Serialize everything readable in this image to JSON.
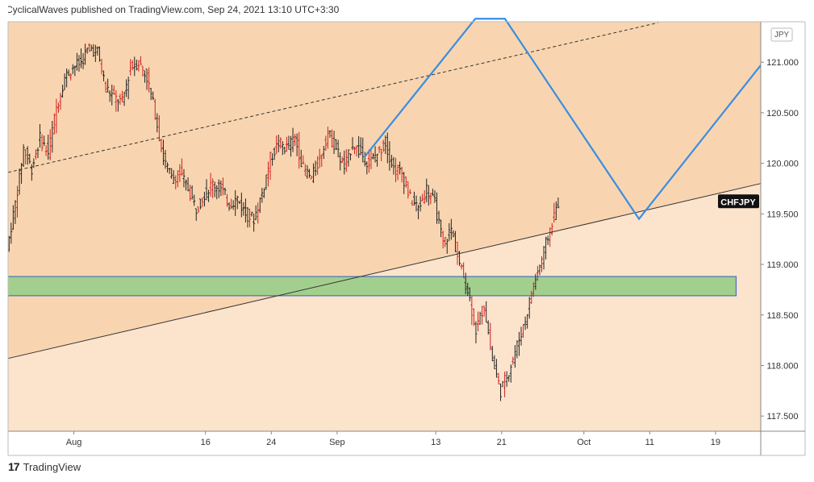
{
  "header": {
    "publisher_line": "CyclicalWaves published on TradingView.com, Sep 24, 2021 13:10 UTC+3:30"
  },
  "footer": {
    "logo_mark": "17",
    "brand": "TradingView"
  },
  "colors": {
    "upper_zone": "#f8d5b0",
    "lower_zone": "#fbe3cc",
    "support_box": "#a3cf8e",
    "support_box_border": "#2b5fbd",
    "projection_line": "#3a8ee0",
    "candle": "#222222",
    "candle_accent": "#d11f1f",
    "trendline": "#333333"
  },
  "chart_data": {
    "type": "candlestick",
    "symbol": "CHFJPY",
    "currency": "JPY",
    "ylim": [
      117.35,
      121.4
    ],
    "y_ticks": [
      "121.000",
      "120.500",
      "120.000",
      "119.500",
      "119.000",
      "118.500",
      "118.000",
      "117.500"
    ],
    "x_ticks": [
      {
        "label": "Aug",
        "day": 8
      },
      {
        "label": "16",
        "day": 24
      },
      {
        "label": "24",
        "day": 32
      },
      {
        "label": "Sep",
        "day": 40
      },
      {
        "label": "13",
        "day": 52
      },
      {
        "label": "21",
        "day": 60
      },
      {
        "label": "Oct",
        "day": 70
      },
      {
        "label": "11",
        "day": 78
      },
      {
        "label": "19",
        "day": 86
      }
    ],
    "xlim_days": [
      0,
      91.5
    ],
    "last_price_label": "CHFJPY",
    "last_price": 119.62,
    "price_path": [
      [
        0,
        119.15
      ],
      [
        1,
        119.6
      ],
      [
        2,
        120.15
      ],
      [
        3,
        119.95
      ],
      [
        4,
        120.25
      ],
      [
        5,
        120.1
      ],
      [
        6,
        120.55
      ],
      [
        7,
        120.85
      ],
      [
        8,
        120.95
      ],
      [
        9,
        121.0
      ],
      [
        10,
        121.15
      ],
      [
        11,
        121.1
      ],
      [
        12,
        120.75
      ],
      [
        13,
        120.65
      ],
      [
        14,
        120.6
      ],
      [
        15,
        120.95
      ],
      [
        16,
        121.0
      ],
      [
        17,
        120.85
      ],
      [
        18,
        120.5
      ],
      [
        19,
        120.05
      ],
      [
        20,
        119.85
      ],
      [
        21,
        119.9
      ],
      [
        22,
        119.75
      ],
      [
        23,
        119.55
      ],
      [
        24,
        119.7
      ],
      [
        25,
        119.8
      ],
      [
        26,
        119.75
      ],
      [
        27,
        119.6
      ],
      [
        28,
        119.65
      ],
      [
        29,
        119.5
      ],
      [
        30,
        119.45
      ],
      [
        31,
        119.7
      ],
      [
        32,
        120.05
      ],
      [
        33,
        120.2
      ],
      [
        34,
        120.15
      ],
      [
        35,
        120.25
      ],
      [
        36,
        119.95
      ],
      [
        37,
        119.85
      ],
      [
        38,
        120.05
      ],
      [
        39,
        120.3
      ],
      [
        40,
        120.15
      ],
      [
        41,
        119.95
      ],
      [
        42,
        120.2
      ],
      [
        43,
        120.1
      ],
      [
        44,
        120.0
      ],
      [
        45,
        120.1
      ],
      [
        46,
        120.2
      ],
      [
        47,
        119.95
      ],
      [
        48,
        119.9
      ],
      [
        49,
        119.65
      ],
      [
        50,
        119.55
      ],
      [
        51,
        119.75
      ],
      [
        52,
        119.6
      ],
      [
        53,
        119.2
      ],
      [
        54,
        119.35
      ],
      [
        55,
        119.0
      ],
      [
        56,
        118.75
      ],
      [
        57,
        118.35
      ],
      [
        58,
        118.6
      ],
      [
        59,
        118.05
      ],
      [
        60,
        117.75
      ],
      [
        61,
        117.95
      ],
      [
        62,
        118.2
      ],
      [
        63,
        118.45
      ],
      [
        64,
        118.8
      ],
      [
        65,
        119.05
      ],
      [
        66,
        119.35
      ],
      [
        67,
        119.62
      ]
    ],
    "support_zone": {
      "x1_day": 0,
      "x2_day": 88.5,
      "y_top": 118.88,
      "y_bottom": 118.69
    },
    "trendline": {
      "x1_day": 0,
      "y1": 118.07,
      "x2_day": 91.5,
      "y2": 119.8
    },
    "dashed_line": {
      "x1_day": 0,
      "y1": 119.91,
      "x2_day": 79,
      "y2": 121.39
    },
    "projection_path": [
      {
        "day": 43.3,
        "price": 120.06
      },
      {
        "day": 56.8,
        "price": 121.43
      },
      {
        "day": 60.4,
        "price": 121.43
      },
      {
        "day": 76.7,
        "price": 119.45
      },
      {
        "day": 91.5,
        "price": 120.97
      }
    ]
  }
}
